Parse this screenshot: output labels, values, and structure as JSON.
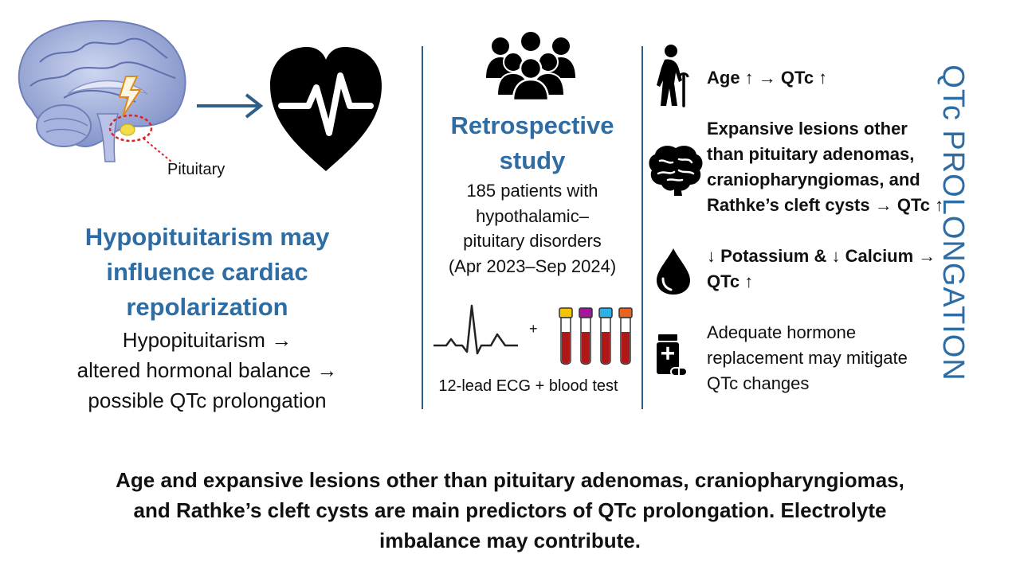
{
  "colors": {
    "accent": "#2e6ca4",
    "divider": "#2e5f8a",
    "text": "#111111"
  },
  "left": {
    "pituitary_label": "Pituitary",
    "title_line1": "Hypopituitarism may",
    "title_line2": "influence cardiac",
    "title_line3": "repolarization",
    "body_line1": "Hypopituitarism →",
    "body_line2": "altered hormonal balance →",
    "body_line3": "possible QTc prolongation"
  },
  "middle": {
    "title_line1": "Retrospective",
    "title_line2": "study",
    "body_line1": "185 patients with",
    "body_line2": "hypothalamic–",
    "body_line3": "pituitary disorders",
    "body_line4": "(Apr 2023–Sep 2024)",
    "plus": "+",
    "methods": "12-lead ECG + blood test"
  },
  "right": {
    "age": "Age ↑ → QTc ↑",
    "lesions_line1": "Expansive lesions other",
    "lesions_line2": "than pituitary adenomas,",
    "lesions_line3": "craniopharyngiomas, and",
    "lesions_line4": "Rathke’s cleft cysts → QTc ↑",
    "electrolytes_line1": "↓ Potassium & ↓ Calcium →",
    "electrolytes_line2": "QTc ↑",
    "hormone_line1": "Adequate hormone",
    "hormone_line2": "replacement may mitigate",
    "hormone_line3": "QTc changes"
  },
  "side_label": "QTc PROLONGATION",
  "conclusion": {
    "line1": "Age and expansive lesions other than pituitary adenomas, craniopharyngiomas,",
    "line2": "and Rathke’s cleft cysts are main predictors of QTc prolongation. Electrolyte",
    "line3": "imbalance may contribute."
  },
  "icons": [
    "brain-illustration",
    "arrow-right-icon",
    "heart-ecg-icon",
    "people-group-icon",
    "ecg-trace-icon",
    "blood-tubes-icon",
    "elderly-person-icon",
    "brain-icon",
    "drop-icon",
    "pill-bottle-icon"
  ]
}
